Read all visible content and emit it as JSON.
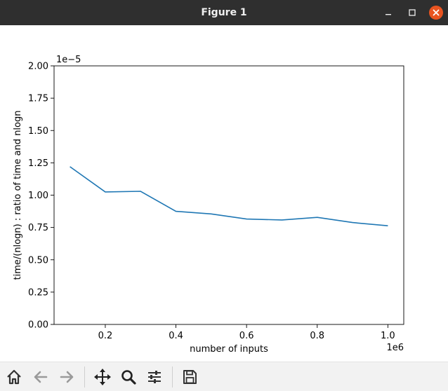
{
  "window": {
    "title": "Figure 1"
  },
  "toolbar": {
    "tools": [
      "home-icon",
      "back-arrow-icon",
      "forward-arrow-icon",
      "pan-move-icon",
      "zoom-magnifier-icon",
      "configure-subplots-icon",
      "save-floppy-icon"
    ]
  },
  "chart_data": {
    "type": "line",
    "xlabel": "number of inputs",
    "ylabel": "time/(nlogn) : ratio of time and nlogn",
    "x_offset_label": "1e6",
    "y_offset_label": "1e−5",
    "x_ticks": [
      "0.2",
      "0.4",
      "0.6",
      "0.8",
      "1.0"
    ],
    "y_ticks": [
      "0.00",
      "0.25",
      "0.50",
      "0.75",
      "1.00",
      "1.25",
      "1.50",
      "1.75",
      "2.00"
    ],
    "xlim": [
      0.055,
      1.045
    ],
    "ylim": [
      0,
      2.0
    ],
    "grid": false,
    "line_color": "#1f77b4",
    "series": [
      {
        "x": [
          0.1,
          0.2,
          0.3,
          0.4,
          0.5,
          0.6,
          0.7,
          0.8,
          0.9,
          1.0
        ],
        "y": [
          1.22,
          1.025,
          1.03,
          0.875,
          0.855,
          0.815,
          0.808,
          0.828,
          0.788,
          0.763
        ]
      }
    ]
  }
}
